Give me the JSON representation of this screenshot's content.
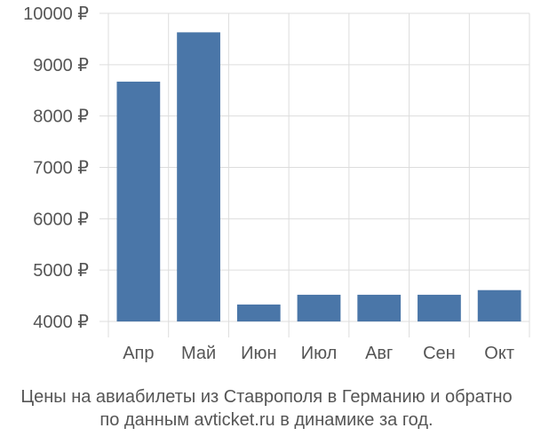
{
  "chart_data": {
    "type": "bar",
    "categories": [
      "Апр",
      "Май",
      "Июн",
      "Июл",
      "Авг",
      "Сен",
      "Окт"
    ],
    "values": [
      8670,
      9630,
      4330,
      4520,
      4520,
      4520,
      4610
    ],
    "ylim": [
      4000,
      10000
    ],
    "yticks": [
      4000,
      5000,
      6000,
      7000,
      8000,
      9000,
      10000
    ],
    "ytick_labels": [
      "4000 ₽",
      "5000 ₽",
      "6000 ₽",
      "7000 ₽",
      "8000 ₽",
      "9000 ₽",
      "10000 ₽"
    ],
    "grid": true,
    "bar_color": "#4a76a8",
    "grid_color": "#dddddd",
    "text_color": "#555555",
    "caption_line1": "Цены на авиабилеты из Ставрополя в Германию и обратно",
    "caption_line2": "по данным avticket.ru в динамике за год."
  }
}
